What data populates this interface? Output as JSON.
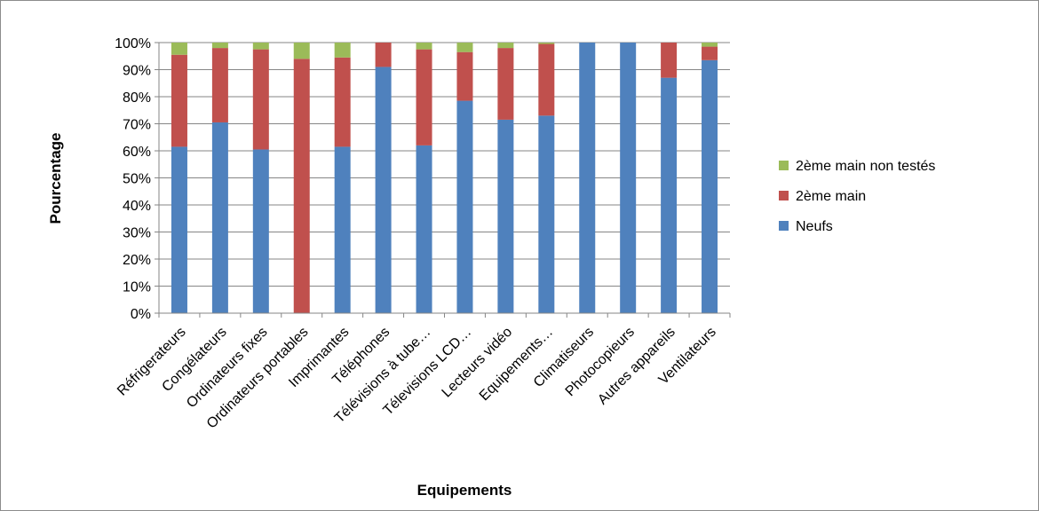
{
  "chart_data": {
    "type": "bar",
    "stacked": true,
    "percent": true,
    "xlabel": "Equipements",
    "ylabel": "Pourcentage",
    "ylim": [
      0,
      100
    ],
    "y_ticks": [
      "0%",
      "10%",
      "20%",
      "30%",
      "40%",
      "50%",
      "60%",
      "70%",
      "80%",
      "90%",
      "100%"
    ],
    "grid": true,
    "legend_position": "right",
    "categories": [
      "Réfrigerateurs",
      "Congélateurs",
      "Ordinateurs fixes",
      "Ordinateurs portables",
      "Imprimantes",
      "Téléphones",
      "Télévisions à tube…",
      "Télevisions LCD…",
      "Lecteurs vidéo",
      "Equipements…",
      "Climatiseurs",
      "Photocopieurs",
      "Autres appareils",
      "Ventilateurs"
    ],
    "series": [
      {
        "name": "Neufs",
        "color": "#4f81bd",
        "values": [
          61.5,
          70.5,
          60.5,
          0,
          61.5,
          91,
          62,
          78.5,
          71.5,
          73,
          100,
          100,
          87,
          93.5
        ]
      },
      {
        "name": "2ème main",
        "color": "#c0504d",
        "values": [
          34,
          27.5,
          37,
          94,
          33,
          9,
          35.5,
          18,
          26.5,
          26.5,
          0,
          0,
          13,
          5
        ]
      },
      {
        "name": "2ème main non testés",
        "color": "#9bbb59",
        "values": [
          4.5,
          2,
          2.5,
          6,
          5.5,
          0,
          2.5,
          3.5,
          2,
          0.5,
          0,
          0,
          0,
          1.5
        ]
      }
    ],
    "legend_order": [
      "2ème main non testés",
      "2ème main",
      "Neufs"
    ]
  }
}
